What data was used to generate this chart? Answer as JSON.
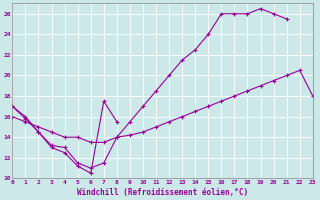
{
  "xlabel": "Windchill (Refroidissement éolien,°C)",
  "xlim": [
    0,
    23
  ],
  "ylim": [
    10,
    27
  ],
  "yticks": [
    10,
    12,
    14,
    16,
    18,
    20,
    22,
    24,
    26
  ],
  "xticks": [
    0,
    1,
    2,
    3,
    4,
    5,
    6,
    7,
    8,
    9,
    10,
    11,
    12,
    13,
    14,
    15,
    16,
    17,
    18,
    19,
    20,
    21,
    22,
    23
  ],
  "bg_color": "#cce8e8",
  "grid_color": "#aad4d4",
  "line_color": "#990099",
  "line1_x": [
    0,
    1,
    2,
    3,
    4,
    5,
    6,
    7,
    8
  ],
  "line1_y": [
    17.0,
    16.0,
    14.5,
    13.0,
    12.5,
    11.2,
    10.5,
    17.5,
    15.5
  ],
  "line2_x": [
    0,
    1,
    2,
    3,
    4,
    5,
    6,
    7,
    8,
    9,
    10,
    11,
    12,
    13,
    14,
    15,
    16,
    17,
    18,
    19,
    20,
    21
  ],
  "line2_y": [
    17.0,
    15.8,
    14.5,
    13.2,
    13.0,
    11.5,
    11.0,
    11.5,
    14.0,
    15.5,
    17.0,
    18.5,
    20.0,
    21.5,
    22.5,
    24.0,
    26.0,
    26.0,
    26.0,
    26.5,
    26.0,
    25.5
  ],
  "line3_x": [
    0,
    1,
    2,
    3,
    4,
    5,
    6,
    7,
    8,
    9,
    10,
    11,
    12,
    13,
    14,
    15,
    16,
    17,
    18,
    19,
    20,
    21,
    22,
    23
  ],
  "line3_y": [
    16.0,
    15.5,
    15.0,
    14.5,
    14.0,
    14.0,
    13.5,
    13.5,
    14.0,
    14.2,
    14.5,
    15.0,
    15.5,
    16.0,
    16.5,
    17.0,
    17.5,
    18.0,
    18.5,
    19.0,
    19.5,
    20.0,
    20.5,
    18.0
  ]
}
